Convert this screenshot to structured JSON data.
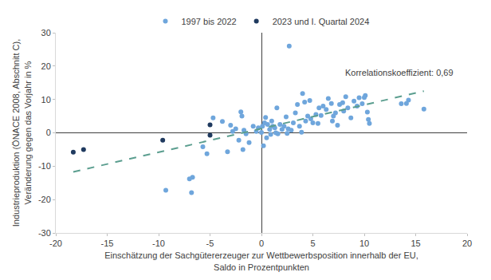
{
  "chart_data": {
    "type": "scatter",
    "x_label": "Einschätzung der Sachgütererzeuger zur Wettbewerbsposition innerhalb der EU,\nSaldo in Prozentpunkten",
    "y_label": "Industrieproduktion (ÖNACE 2008, Abschnitt C),\nVeränderung gegen das Vorjahr in %",
    "xlim": [
      -20,
      20
    ],
    "xticks": [
      -20,
      -15,
      -10,
      -5,
      0,
      5,
      10,
      15,
      20
    ],
    "ylim": [
      -30,
      30
    ],
    "yticks": [
      -30,
      -20,
      -10,
      0,
      10,
      20,
      30
    ],
    "grid": false,
    "legend": "top",
    "annotations": [
      "Korrelationskoeffizient: 0,69"
    ],
    "series": [
      {
        "name": "1997 bis 2022",
        "color": "#6fa6dc",
        "marker": "circle",
        "x": [
          -9.3,
          -7.0,
          -6.7,
          -6.8,
          -5.7,
          -5.3,
          -4.7,
          -3.8,
          -3.3,
          -3.0,
          -2.8,
          -2.5,
          -2.2,
          -2.0,
          -1.9,
          -1.8,
          -1.7,
          -1.5,
          -1.2,
          -0.8,
          -0.5,
          -0.3,
          0.0,
          0.1,
          0.2,
          0.3,
          0.4,
          0.5,
          0.6,
          0.8,
          1.0,
          1.1,
          1.3,
          1.5,
          1.6,
          1.8,
          2.0,
          2.2,
          2.4,
          2.6,
          2.7,
          2.9,
          3.1,
          3.3,
          3.5,
          3.7,
          4.0,
          4.2,
          4.3,
          4.5,
          4.8,
          5.0,
          5.3,
          5.5,
          5.8,
          6.0,
          6.3,
          6.5,
          6.8,
          7.0,
          7.2,
          7.4,
          7.6,
          7.9,
          8.2,
          8.4,
          8.7,
          9.0,
          9.3,
          9.5,
          9.8,
          10.1,
          10.3,
          10.4,
          10.5,
          13.6,
          14.1,
          14.3,
          15.8,
          10.0,
          4.7,
          3.9,
          1.4,
          2.5,
          6.9,
          8.0,
          5.6,
          0.9
        ],
        "values": [
          -17.2,
          -13.8,
          -13.3,
          -17.9,
          -4.2,
          -6.3,
          4.5,
          3.4,
          -5.7,
          2.3,
          0.4,
          1.2,
          -2.2,
          6.3,
          5.0,
          -5.0,
          0.8,
          -0.3,
          -2.9,
          2.0,
          0.4,
          1.5,
          0.1,
          2.0,
          -3.9,
          3.0,
          4.6,
          -1.5,
          2.5,
          1.0,
          3.5,
          2.0,
          1.5,
          7.5,
          -0.3,
          2.5,
          1.0,
          2.0,
          4.8,
          1.2,
          26.0,
          0.8,
          3.0,
          6.0,
          8.5,
          2.0,
          11.8,
          9.2,
          3.5,
          5.0,
          4.2,
          3.0,
          5.5,
          2.8,
          5.2,
          8.0,
          7.0,
          10.3,
          8.8,
          5.0,
          6.0,
          2.3,
          8.5,
          9.0,
          10.8,
          7.5,
          4.5,
          9.5,
          8.0,
          10.5,
          8.7,
          11.2,
          6.2,
          4.0,
          2.8,
          8.7,
          8.8,
          9.8,
          7.1,
          10.6,
          9.7,
          0.2,
          0.0,
          -0.2,
          3.5,
          6.5,
          7.5,
          -0.5
        ]
      },
      {
        "name": "2023 und I. Quartal 2024",
        "color": "#1f3a5f",
        "marker": "circle",
        "x": [
          -18.3,
          -17.3,
          -9.6,
          -5.0,
          -5.0
        ],
        "values": [
          -5.8,
          -5.0,
          -2.2,
          -0.7,
          2.4
        ]
      },
      {
        "type": "line",
        "line_style": "dash",
        "color": "#5b9e8f",
        "x": [
          -18.3,
          15.8
        ],
        "values": [
          -11.7,
          12.5
        ]
      }
    ]
  }
}
